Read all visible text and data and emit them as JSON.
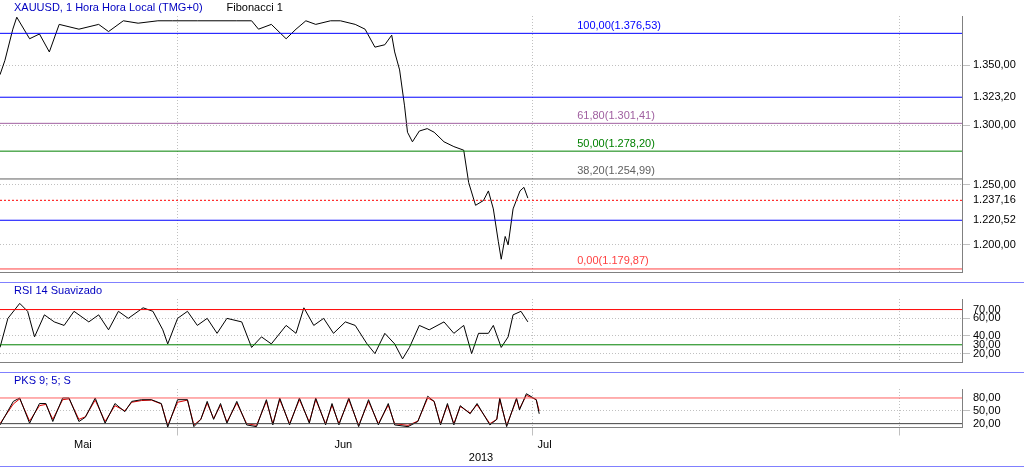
{
  "chart_data": [
    {
      "type": "line",
      "title": "XAUUSD, 1 Hora Hora Local (TMG+0)",
      "annotations": [
        "Fibonacci 1"
      ],
      "x": [
        "2013-05-17T00:00",
        "2013-05-17T10:00",
        "2013-05-18T02:00",
        "2013-05-18T10:00",
        "2013-05-19T12:00",
        "2013-05-20T08:00",
        "2013-05-21T04:00",
        "2013-05-22T00:00",
        "2013-05-23T16:00",
        "2013-05-25T08:00",
        "2013-05-26T04:00",
        "2013-05-27T10:00",
        "2013-05-28T16:00",
        "2013-05-30T08:00",
        "2013-05-31T14:00",
        "2013-06-02T16:00",
        "2013-06-06T00:00",
        "2013-06-07T06:00",
        "2013-06-07T20:00",
        "2013-06-08T22:00",
        "2013-06-10T04:00",
        "2013-06-11T00:00",
        "2013-06-11T20:00",
        "2013-06-12T16:00",
        "2013-06-13T22:00",
        "2013-06-14T18:00",
        "2013-06-16T00:00",
        "2013-06-16T20:00",
        "2013-06-17T16:00",
        "2013-06-18T12:00",
        "2013-06-19T02:00",
        "2013-06-19T08:00",
        "2013-06-19T18:00",
        "2013-06-20T04:00",
        "2013-06-20T10:00",
        "2013-06-20T20:00",
        "2013-06-21T10:00",
        "2013-06-22T02:00",
        "2013-06-22T16:00",
        "2013-06-23T12:00",
        "2013-06-24T08:00",
        "2013-06-25T04:00",
        "2013-06-25T14:00",
        "2013-06-26T04:00",
        "2013-06-26T20:00",
        "2013-06-27T06:00",
        "2013-06-27T16:00",
        "2013-06-28T02:00",
        "2013-06-28T08:00",
        "2013-06-28T16:00",
        "2013-06-28T22:00",
        "2013-06-29T08:00",
        "2013-06-29T22:00",
        "2013-06-30T06:00",
        "2013-06-30T14:00"
      ],
      "series": [
        {
          "color": "#000000",
          "values": [
            1342,
            1354,
            1380,
            1390,
            1372,
            1376,
            1361,
            1384,
            1380,
            1384,
            1378,
            1387,
            1385,
            1387,
            1387,
            1387,
            1387,
            1387,
            1380,
            1384,
            1372,
            1380,
            1387,
            1384,
            1387,
            1387,
            1384,
            1380,
            1365,
            1367,
            1375,
            1361,
            1346,
            1316,
            1294,
            1286,
            1295,
            1297,
            1294,
            1286,
            1282,
            1279,
            1252,
            1233,
            1237,
            1245,
            1230,
            1203,
            1188,
            1207,
            1200,
            1230,
            1245,
            1248,
            1239
          ]
        }
      ],
      "xlim": [
        "2013-05-17T00:00",
        "2013-08-06T06:00"
      ],
      "xticks": [
        {
          "value": "2013-06-01",
          "label": null
        },
        {
          "value": "2013-07-01",
          "label": null
        },
        {
          "value": "2013-08-01",
          "label": null
        }
      ],
      "ylim": [
        1177,
        1391
      ],
      "yticks": [
        {
          "value": 1200,
          "label": "1.200,00"
        },
        {
          "value": 1220.52,
          "label": "1.220,52"
        },
        {
          "value": 1237.16,
          "label": "1.237,16"
        },
        {
          "value": 1250,
          "label": "1.250,00"
        },
        {
          "value": 1300,
          "label": "1.300,00"
        },
        {
          "value": 1323.2,
          "label": "1.323,20"
        },
        {
          "value": 1350,
          "label": "1.350,00"
        }
      ],
      "ref_lines": [
        {
          "axis": "y",
          "value": 1376.53,
          "label": "100,00(1.376,53)",
          "color": "#0000ff"
        },
        {
          "axis": "y",
          "value": 1301.41,
          "label": "61,80(1.301,41)",
          "color": "#a060a0"
        },
        {
          "axis": "y",
          "value": 1278.2,
          "label": "50,00(1.278,20)",
          "color": "#008000"
        },
        {
          "axis": "y",
          "value": 1254.99,
          "label": "38,20(1.254,99)",
          "color": "#606060"
        },
        {
          "axis": "y",
          "value": 1179.87,
          "label": "0,00(1.179,87)",
          "color": "#ff4040"
        },
        {
          "axis": "y",
          "value": 1323.2,
          "color": "#0000ff"
        },
        {
          "axis": "y",
          "value": 1220.52,
          "color": "#0000ff"
        },
        {
          "axis": "y",
          "value": 1237.16,
          "color": "#ff0000",
          "line_style": "dotted"
        }
      ],
      "grid": true,
      "legend": false,
      "tick_labels": "y"
    },
    {
      "type": "line",
      "title": "RSI 14 Suavizado",
      "x": [
        "2013-05-17T00:00",
        "2013-05-17T16:00",
        "2013-05-18T16:00",
        "2013-05-19T08:00",
        "2013-05-19T22:00",
        "2013-05-20T18:00",
        "2013-05-21T14:00",
        "2013-05-22T10:00",
        "2013-05-23T06:00",
        "2013-05-24T12:00",
        "2013-05-25T08:00",
        "2013-05-26T04:00",
        "2013-05-27T00:00",
        "2013-05-27T20:00",
        "2013-05-29T02:00",
        "2013-05-29T22:00",
        "2013-05-30T18:00",
        "2013-05-31T04:00",
        "2013-06-01T00:00",
        "2013-06-01T20:00",
        "2013-06-02T16:00",
        "2013-06-03T12:00",
        "2013-06-04T08:00",
        "2013-06-05T04:00",
        "2013-06-06T10:00",
        "2013-06-07T06:00",
        "2013-06-08T02:00",
        "2013-06-08T22:00",
        "2013-06-10T04:00",
        "2013-06-11T00:00",
        "2013-06-11T16:00",
        "2013-06-12T12:00",
        "2013-06-13T08:00",
        "2013-06-14T04:00",
        "2013-06-15T04:00",
        "2013-06-16T00:00",
        "2013-06-17T00:00",
        "2013-06-17T16:00",
        "2013-06-18T12:00",
        "2013-06-19T08:00",
        "2013-06-20T00:00",
        "2013-06-20T14:00",
        "2013-06-21T10:00",
        "2013-06-22T06:00",
        "2013-06-23T12:00",
        "2013-06-24T08:00",
        "2013-06-25T04:00",
        "2013-06-25T20:00",
        "2013-06-26T10:00",
        "2013-06-27T06:00",
        "2013-06-27T16:00",
        "2013-06-28T08:00",
        "2013-06-28T22:00",
        "2013-06-29T08:00",
        "2013-06-30T00:00",
        "2013-06-30T14:00"
      ],
      "series": [
        {
          "color": "#000000",
          "values": [
            27,
            60,
            77,
            68,
            39,
            64,
            56,
            52,
            68,
            56,
            64,
            47,
            68,
            60,
            72,
            68,
            47,
            31,
            60,
            68,
            52,
            60,
            43,
            60,
            56,
            27,
            39,
            31,
            52,
            43,
            72,
            52,
            60,
            43,
            56,
            52,
            31,
            20,
            43,
            31,
            14,
            27,
            52,
            47,
            56,
            43,
            52,
            20,
            43,
            43,
            52,
            27,
            39,
            64,
            68,
            56
          ]
        }
      ],
      "xlim": [
        "2013-05-17T00:00",
        "2013-08-06T06:00"
      ],
      "xticks": [
        {
          "value": "2013-06-01",
          "label": null
        },
        {
          "value": "2013-07-01",
          "label": null
        },
        {
          "value": "2013-08-01",
          "label": null
        }
      ],
      "ylim": [
        10,
        82
      ],
      "yticks": [
        {
          "value": 20,
          "label": "20,00"
        },
        {
          "value": 30,
          "label": "30,00"
        },
        {
          "value": 40,
          "label": "40,00"
        },
        {
          "value": 60,
          "label": "60,00"
        },
        {
          "value": 70,
          "label": "70,00"
        }
      ],
      "ref_lines": [
        {
          "axis": "y",
          "value": 70,
          "color": "#ff0000"
        },
        {
          "axis": "y",
          "value": 30,
          "color": "#008000"
        }
      ],
      "grid": true,
      "legend": false,
      "tick_labels": "y"
    },
    {
      "type": "line",
      "title": "PKS 9; 5; S",
      "xlabel": "2013",
      "x": [
        "2013-05-17T00:00",
        "2013-05-18T03:00",
        "2013-05-18T16:00",
        "2013-05-19T12:00",
        "2013-05-20T08:00",
        "2013-05-20T21:00",
        "2013-05-21T11:00",
        "2013-05-22T07:00",
        "2013-05-22T20:00",
        "2013-05-23T16:00",
        "2013-05-24T05:00",
        "2013-05-25T01:00",
        "2013-05-25T21:00",
        "2013-05-26T17:00",
        "2013-05-27T13:00",
        "2013-05-28T03:00",
        "2013-05-28T23:00",
        "2013-05-29T19:00",
        "2013-05-30T15:00",
        "2013-05-31T04:00",
        "2013-06-01T00:00",
        "2013-06-01T20:00",
        "2013-06-02T09:00",
        "2013-06-02T23:00",
        "2013-06-03T12:00",
        "2013-06-04T01:00",
        "2013-06-04T15:00",
        "2013-06-05T04:00",
        "2013-06-06T00:00",
        "2013-06-06T20:00",
        "2013-06-07T16:00",
        "2013-06-08T12:00",
        "2013-06-09T01:00",
        "2013-06-09T15:00",
        "2013-06-10T11:00",
        "2013-06-11T07:00",
        "2013-06-12T03:00",
        "2013-06-12T16:00",
        "2013-06-13T12:00",
        "2013-06-14T01:00",
        "2013-06-14T15:00",
        "2013-06-15T11:00",
        "2013-06-16T07:00",
        "2013-06-17T03:00",
        "2013-06-17T23:00",
        "2013-06-18T19:00",
        "2013-06-19T08:00",
        "2013-06-20T11:00",
        "2013-06-21T07:00",
        "2013-06-22T03:00",
        "2013-06-22T16:00",
        "2013-06-23T05:00",
        "2013-06-23T19:00",
        "2013-06-24T08:00",
        "2013-06-24T21:00",
        "2013-06-25T17:00",
        "2013-06-26T07:00",
        "2013-06-27T09:00",
        "2013-06-27T23:00",
        "2013-06-28T05:00",
        "2013-06-28T19:00",
        "2013-06-29T15:00",
        "2013-06-29T21:00",
        "2013-06-30T11:00",
        "2013-07-01T07:00",
        "2013-07-01T13:00"
      ],
      "series": [
        {
          "color": "#000000",
          "values": [
            17,
            72,
            80,
            21,
            67,
            67,
            25,
            80,
            80,
            25,
            35,
            80,
            21,
            67,
            48,
            72,
            76,
            76,
            67,
            12,
            76,
            76,
            13,
            30,
            72,
            30,
            67,
            21,
            72,
            17,
            13,
            76,
            17,
            80,
            17,
            80,
            21,
            80,
            17,
            67,
            17,
            80,
            13,
            76,
            17,
            67,
            17,
            13,
            25,
            84,
            72,
            17,
            67,
            17,
            62,
            43,
            67,
            17,
            30,
            80,
            13,
            80,
            52,
            90,
            76,
            43
          ]
        },
        {
          "color": "#e00000",
          "values": [
            20,
            66,
            78,
            26,
            62,
            65,
            30,
            76,
            78,
            30,
            36,
            75,
            25,
            62,
            50,
            70,
            74,
            75,
            66,
            16,
            70,
            75,
            17,
            30,
            68,
            32,
            63,
            24,
            68,
            20,
            16,
            72,
            20,
            76,
            20,
            76,
            24,
            76,
            20,
            63,
            20,
            76,
            16,
            72,
            20,
            63,
            20,
            16,
            26,
            80,
            72,
            20,
            63,
            20,
            60,
            45,
            64,
            20,
            30,
            76,
            16,
            76,
            55,
            86,
            76,
            50
          ]
        }
      ],
      "xlim": [
        "2013-05-17T00:00",
        "2013-08-06T06:00"
      ],
      "xticks": [
        {
          "value": "2013-05-24",
          "label": "Mai"
        },
        {
          "value": "2013-06-01",
          "label": null
        },
        {
          "value": "2013-06-15",
          "label": "Jun"
        },
        {
          "value": "2013-07-01",
          "label": null
        },
        {
          "value": "2013-07-02",
          "label": "Jul"
        },
        {
          "value": "2013-08-01",
          "label": null
        }
      ],
      "ylim": [
        11,
        101
      ],
      "yticks": [
        {
          "value": 20,
          "label": "20,00"
        },
        {
          "value": 50,
          "label": "50,00"
        },
        {
          "value": 80,
          "label": "80,00"
        }
      ],
      "ref_lines": [
        {
          "axis": "y",
          "value": 80,
          "color": "#ff6060"
        },
        {
          "axis": "y",
          "value": 20,
          "color": "#404040"
        }
      ],
      "grid": true,
      "legend": false
    }
  ]
}
